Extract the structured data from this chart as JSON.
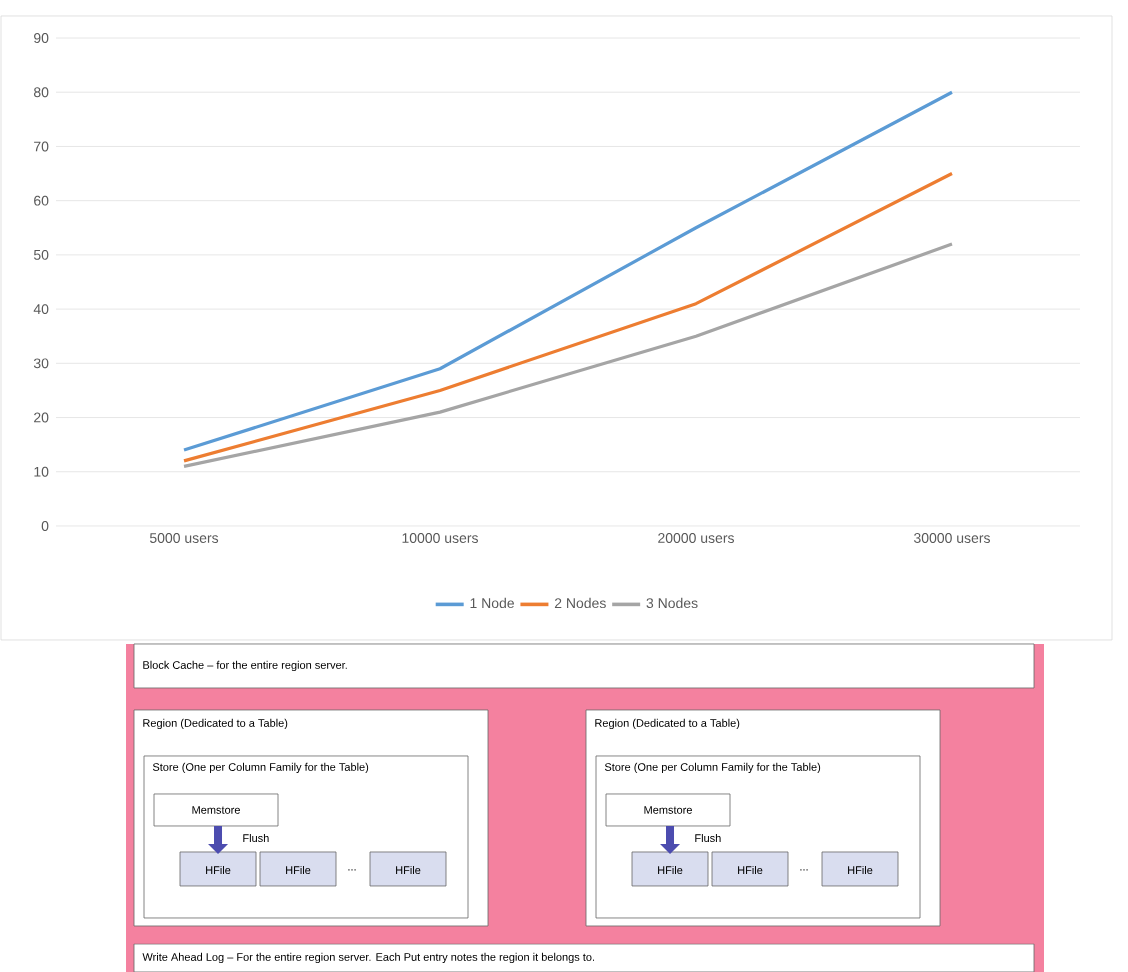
{
  "chart_data": {
    "type": "line",
    "categories": [
      "5000 users",
      "10000 users",
      "20000 users",
      "30000 users"
    ],
    "series": [
      {
        "name": "1 Node",
        "color": "#5b9bd5",
        "values": [
          14,
          29,
          55,
          80
        ]
      },
      {
        "name": "2 Nodes",
        "color": "#ed7d31",
        "values": [
          12,
          25,
          41,
          65
        ]
      },
      {
        "name": "3 Nodes",
        "color": "#a5a5a5",
        "values": [
          11,
          21,
          35,
          52
        ]
      }
    ],
    "ylim": [
      0,
      90
    ],
    "yticks": [
      0,
      10,
      20,
      30,
      40,
      50,
      60,
      70,
      80,
      90
    ],
    "grid": "y",
    "legend": "bottom",
    "line_style": "solid",
    "annotations": [
      "Block Cache – for the entire region server.",
      "Region (Dedicated to a Table)",
      "Store (One per Column Family for the Table)",
      "Memstore",
      "Flush",
      "HFile",
      "HFile",
      "...",
      "HFile",
      "Region (Dedicated to a Table)",
      "Store (One per Column Family for the Table)",
      "Memstore",
      "Flush",
      "HFile",
      "HFile",
      "...",
      "HFile",
      "Write Ahead Log – For the entire region server. Each Put entry notes the region it belongs to."
    ]
  }
}
